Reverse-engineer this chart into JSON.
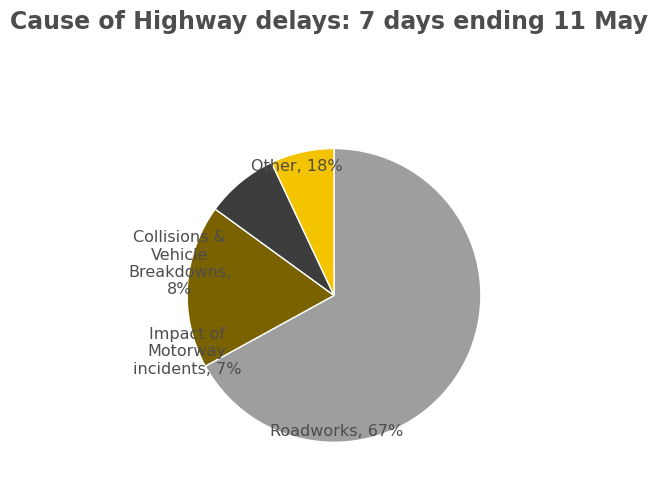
{
  "title": "Cause of Highway delays: 7 days ending 11 May",
  "title_fontsize": 17,
  "title_color": "#4d4d4d",
  "slices": [
    {
      "label": "Roadworks, 67%",
      "value": 67,
      "color": "#9e9e9e"
    },
    {
      "label": "Other, 18%",
      "value": 18,
      "color": "#7a6200"
    },
    {
      "label": "Collisions &\nVehicle\nBreakdowns,\n8%",
      "value": 8,
      "color": "#3d3d3d"
    },
    {
      "label": "Impact of\nMotorway\nincidents, 7%",
      "value": 7,
      "color": "#f5c400"
    }
  ],
  "label_fontsize": 11.5,
  "label_color": "#4d4d4d",
  "background_color": "#ffffff",
  "startangle": 90
}
